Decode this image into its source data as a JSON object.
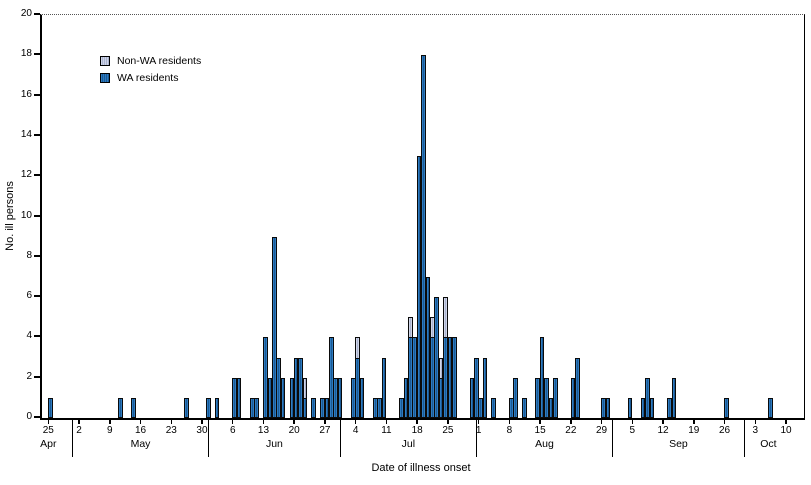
{
  "figure": {
    "ylabel": "No. ill persons",
    "xlabel": "Date of illness onset",
    "legend": [
      {
        "label": "Non-WA residents"
      },
      {
        "label": "WA residents"
      }
    ]
  },
  "chart_data": {
    "type": "bar",
    "stacked": true,
    "title": "",
    "xlabel": "Date of illness onset",
    "ylabel": "No. ill persons",
    "ylim": [
      0,
      20
    ],
    "ytick_step": 2,
    "grid": false,
    "legend_position": "upper-left-inside",
    "series": [
      {
        "name": "Non-WA residents",
        "color": "#cfd5e8",
        "hatch_color": "#aab3cf"
      },
      {
        "name": "WA residents",
        "color": "#2e7bc0",
        "hatch_color": "#1a5a96"
      }
    ],
    "x_axis": {
      "unit": "day",
      "start": "Apr 25",
      "end": "Oct 10",
      "ticks": [
        {
          "label": "25",
          "day": 0
        },
        {
          "label": "2",
          "day": 7
        },
        {
          "label": "9",
          "day": 14
        },
        {
          "label": "16",
          "day": 21
        },
        {
          "label": "23",
          "day": 28
        },
        {
          "label": "30",
          "day": 35
        },
        {
          "label": "6",
          "day": 42
        },
        {
          "label": "13",
          "day": 49
        },
        {
          "label": "20",
          "day": 56
        },
        {
          "label": "27",
          "day": 63
        },
        {
          "label": "4",
          "day": 70
        },
        {
          "label": "11",
          "day": 77
        },
        {
          "label": "18",
          "day": 84
        },
        {
          "label": "25",
          "day": 91
        },
        {
          "label": "1",
          "day": 98
        },
        {
          "label": "8",
          "day": 105
        },
        {
          "label": "15",
          "day": 112
        },
        {
          "label": "22",
          "day": 119
        },
        {
          "label": "29",
          "day": 126
        },
        {
          "label": "5",
          "day": 133
        },
        {
          "label": "12",
          "day": 140
        },
        {
          "label": "19",
          "day": 147
        },
        {
          "label": "26",
          "day": 154
        },
        {
          "label": "3",
          "day": 161
        },
        {
          "label": "10",
          "day": 168
        }
      ],
      "month_separator_days": [
        5.5,
        36.5,
        66.5,
        97.5,
        128.5,
        158.5
      ],
      "month_labels": [
        {
          "label": "Apr",
          "day": 0
        },
        {
          "label": "May",
          "day": 21
        },
        {
          "label": "Jun",
          "day": 51.5
        },
        {
          "label": "Jul",
          "day": 82
        },
        {
          "label": "Aug",
          "day": 113
        },
        {
          "label": "Sep",
          "day": 143.5
        },
        {
          "label": "Oct",
          "day": 164
        }
      ]
    },
    "bars": [
      {
        "date": "Apr 25",
        "day": 0,
        "wa": 1,
        "non_wa": 0
      },
      {
        "date": "May 11",
        "day": 16,
        "wa": 1,
        "non_wa": 0
      },
      {
        "date": "May 14",
        "day": 19,
        "wa": 1,
        "non_wa": 0
      },
      {
        "date": "May 26",
        "day": 31,
        "wa": 1,
        "non_wa": 0
      },
      {
        "date": "May 31",
        "day": 36,
        "wa": 1,
        "non_wa": 0
      },
      {
        "date": "Jun 2",
        "day": 38,
        "wa": 1,
        "non_wa": 0
      },
      {
        "date": "Jun 6",
        "day": 42,
        "wa": 2,
        "non_wa": 0
      },
      {
        "date": "Jun 7",
        "day": 43,
        "wa": 2,
        "non_wa": 0
      },
      {
        "date": "Jun 10",
        "day": 46,
        "wa": 1,
        "non_wa": 0
      },
      {
        "date": "Jun 11",
        "day": 47,
        "wa": 1,
        "non_wa": 0
      },
      {
        "date": "Jun 13",
        "day": 49,
        "wa": 4,
        "non_wa": 0
      },
      {
        "date": "Jun 14",
        "day": 50,
        "wa": 2,
        "non_wa": 0
      },
      {
        "date": "Jun 15",
        "day": 51,
        "wa": 9,
        "non_wa": 0
      },
      {
        "date": "Jun 16",
        "day": 52,
        "wa": 3,
        "non_wa": 0
      },
      {
        "date": "Jun 17",
        "day": 53,
        "wa": 2,
        "non_wa": 0
      },
      {
        "date": "Jun 19",
        "day": 55,
        "wa": 2,
        "non_wa": 0
      },
      {
        "date": "Jun 20",
        "day": 56,
        "wa": 3,
        "non_wa": 0
      },
      {
        "date": "Jun 21",
        "day": 57,
        "wa": 3,
        "non_wa": 0
      },
      {
        "date": "Jun 22",
        "day": 58,
        "wa": 1,
        "non_wa": 1
      },
      {
        "date": "Jun 24",
        "day": 60,
        "wa": 1,
        "non_wa": 0
      },
      {
        "date": "Jun 26",
        "day": 62,
        "wa": 1,
        "non_wa": 0
      },
      {
        "date": "Jun 27",
        "day": 63,
        "wa": 1,
        "non_wa": 0
      },
      {
        "date": "Jun 28",
        "day": 64,
        "wa": 4,
        "non_wa": 0
      },
      {
        "date": "Jun 29",
        "day": 65,
        "wa": 2,
        "non_wa": 0
      },
      {
        "date": "Jun 30",
        "day": 66,
        "wa": 2,
        "non_wa": 0
      },
      {
        "date": "Jul 3",
        "day": 69,
        "wa": 2,
        "non_wa": 0
      },
      {
        "date": "Jul 4",
        "day": 70,
        "wa": 3,
        "non_wa": 1
      },
      {
        "date": "Jul 5",
        "day": 71,
        "wa": 2,
        "non_wa": 0
      },
      {
        "date": "Jul 8",
        "day": 74,
        "wa": 1,
        "non_wa": 0
      },
      {
        "date": "Jul 9",
        "day": 75,
        "wa": 1,
        "non_wa": 0
      },
      {
        "date": "Jul 10",
        "day": 76,
        "wa": 3,
        "non_wa": 0
      },
      {
        "date": "Jul 14",
        "day": 80,
        "wa": 1,
        "non_wa": 0
      },
      {
        "date": "Jul 15",
        "day": 81,
        "wa": 2,
        "non_wa": 0
      },
      {
        "date": "Jul 16",
        "day": 82,
        "wa": 4,
        "non_wa": 1
      },
      {
        "date": "Jul 17",
        "day": 83,
        "wa": 4,
        "non_wa": 0
      },
      {
        "date": "Jul 18",
        "day": 84,
        "wa": 13,
        "non_wa": 0
      },
      {
        "date": "Jul 19",
        "day": 85,
        "wa": 18,
        "non_wa": 0
      },
      {
        "date": "Jul 20",
        "day": 86,
        "wa": 7,
        "non_wa": 0
      },
      {
        "date": "Jul 21",
        "day": 87,
        "wa": 4,
        "non_wa": 1
      },
      {
        "date": "Jul 22",
        "day": 88,
        "wa": 6,
        "non_wa": 0
      },
      {
        "date": "Jul 23",
        "day": 89,
        "wa": 2,
        "non_wa": 1
      },
      {
        "date": "Jul 24",
        "day": 90,
        "wa": 4,
        "non_wa": 2
      },
      {
        "date": "Jul 25",
        "day": 91,
        "wa": 4,
        "non_wa": 0
      },
      {
        "date": "Jul 26",
        "day": 92,
        "wa": 4,
        "non_wa": 0
      },
      {
        "date": "Jul 30",
        "day": 96,
        "wa": 2,
        "non_wa": 0
      },
      {
        "date": "Jul 31",
        "day": 97,
        "wa": 3,
        "non_wa": 0
      },
      {
        "date": "Aug 1",
        "day": 98,
        "wa": 1,
        "non_wa": 0
      },
      {
        "date": "Aug 2",
        "day": 99,
        "wa": 3,
        "non_wa": 0
      },
      {
        "date": "Aug 4",
        "day": 101,
        "wa": 1,
        "non_wa": 0
      },
      {
        "date": "Aug 8",
        "day": 105,
        "wa": 1,
        "non_wa": 0
      },
      {
        "date": "Aug 9",
        "day": 106,
        "wa": 2,
        "non_wa": 0
      },
      {
        "date": "Aug 11",
        "day": 108,
        "wa": 1,
        "non_wa": 0
      },
      {
        "date": "Aug 14",
        "day": 111,
        "wa": 2,
        "non_wa": 0
      },
      {
        "date": "Aug 15",
        "day": 112,
        "wa": 4,
        "non_wa": 0
      },
      {
        "date": "Aug 16",
        "day": 113,
        "wa": 2,
        "non_wa": 0
      },
      {
        "date": "Aug 17",
        "day": 114,
        "wa": 1,
        "non_wa": 0
      },
      {
        "date": "Aug 18",
        "day": 115,
        "wa": 2,
        "non_wa": 0
      },
      {
        "date": "Aug 22",
        "day": 119,
        "wa": 2,
        "non_wa": 0
      },
      {
        "date": "Aug 23",
        "day": 120,
        "wa": 3,
        "non_wa": 0
      },
      {
        "date": "Aug 29",
        "day": 126,
        "wa": 1,
        "non_wa": 0
      },
      {
        "date": "Aug 30",
        "day": 127,
        "wa": 1,
        "non_wa": 0
      },
      {
        "date": "Sep 4",
        "day": 132,
        "wa": 1,
        "non_wa": 0
      },
      {
        "date": "Sep 7",
        "day": 135,
        "wa": 1,
        "non_wa": 0
      },
      {
        "date": "Sep 8",
        "day": 136,
        "wa": 2,
        "non_wa": 0
      },
      {
        "date": "Sep 9",
        "day": 137,
        "wa": 1,
        "non_wa": 0
      },
      {
        "date": "Sep 13",
        "day": 141,
        "wa": 1,
        "non_wa": 0
      },
      {
        "date": "Sep 14",
        "day": 142,
        "wa": 2,
        "non_wa": 0
      },
      {
        "date": "Sep 26",
        "day": 154,
        "wa": 1,
        "non_wa": 0
      },
      {
        "date": "Oct 6",
        "day": 164,
        "wa": 1,
        "non_wa": 0
      }
    ]
  }
}
